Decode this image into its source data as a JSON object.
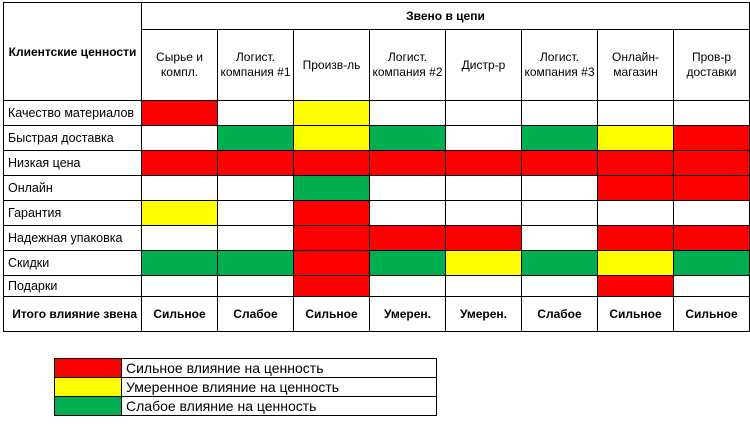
{
  "colors": {
    "strong": "#ff0000",
    "moderate": "#ffff00",
    "weak": "#00b050",
    "none": "#ffffff"
  },
  "header": {
    "corner": "Клиентские ценности",
    "group": "Звено в цепи",
    "columns": [
      "Сырье и компл.",
      "Логист. компания #1",
      "Произв-ль",
      "Логист. компания #2",
      "Дистр-р",
      "Логист. компания #3",
      "Онлайн-магазин",
      "Пров-р доставки"
    ]
  },
  "rows": [
    {
      "label": "Качество материалов",
      "cells": [
        "strong",
        "none",
        "moderate",
        "none",
        "none",
        "none",
        "none",
        "none"
      ]
    },
    {
      "label": "Быстрая доставка",
      "cells": [
        "none",
        "weak",
        "moderate",
        "weak",
        "none",
        "weak",
        "moderate",
        "strong"
      ]
    },
    {
      "label": "Низкая цена",
      "cells": [
        "strong",
        "strong",
        "strong",
        "strong",
        "strong",
        "strong",
        "strong",
        "strong"
      ]
    },
    {
      "label": "Онлайн",
      "cells": [
        "none",
        "none",
        "weak",
        "none",
        "none",
        "none",
        "strong",
        "strong"
      ]
    },
    {
      "label": "Гарантия",
      "cells": [
        "moderate",
        "none",
        "strong",
        "none",
        "none",
        "none",
        "none",
        "none"
      ]
    },
    {
      "label": "Надежная упаковка",
      "cells": [
        "none",
        "none",
        "strong",
        "strong",
        "strong",
        "none",
        "strong",
        "strong"
      ]
    },
    {
      "label": "Скидки",
      "cells": [
        "weak",
        "weak",
        "strong",
        "weak",
        "moderate",
        "weak",
        "moderate",
        "weak"
      ]
    },
    {
      "label": "Подарки",
      "cells": [
        "none",
        "none",
        "strong",
        "none",
        "none",
        "none",
        "strong",
        "none"
      ]
    }
  ],
  "total": {
    "label": "Итого влияние звена",
    "values": [
      "Сильное",
      "Слабое",
      "Сильное",
      "Умерен.",
      "Умерен.",
      "Слабое",
      "Сильное",
      "Сильное"
    ]
  },
  "legend": [
    {
      "level": "strong",
      "text": "Сильное влияние на ценность"
    },
    {
      "level": "moderate",
      "text": "Умеренное влияние на ценность"
    },
    {
      "level": "weak",
      "text": "Слабое влияние на ценность"
    }
  ]
}
